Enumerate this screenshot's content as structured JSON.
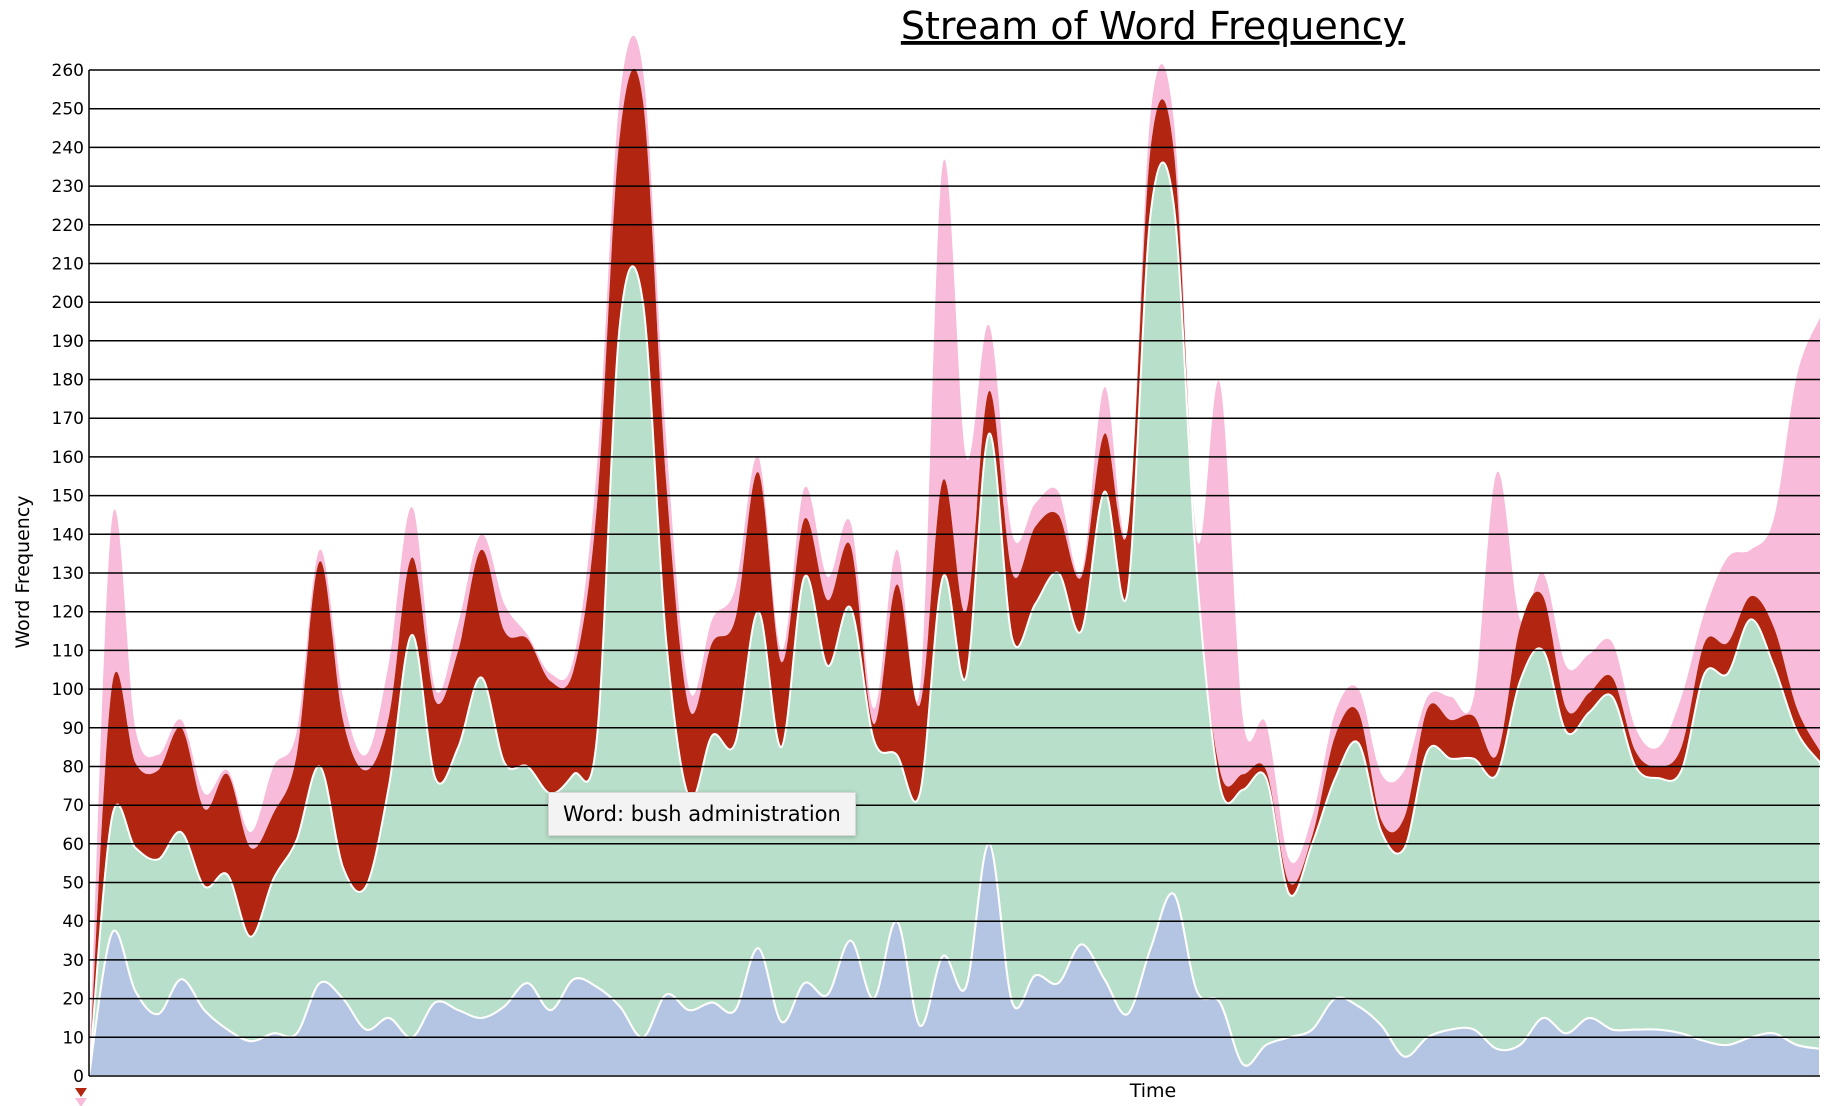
{
  "chart_data": {
    "type": "area",
    "title": "Stream of Word Frequency",
    "xlabel": "Time",
    "ylabel": "Word Frequency",
    "ylim": [
      0,
      260
    ],
    "yticks": [
      0,
      10,
      20,
      30,
      40,
      50,
      60,
      70,
      80,
      90,
      100,
      110,
      120,
      130,
      140,
      150,
      160,
      170,
      180,
      190,
      200,
      210,
      220,
      230,
      240,
      250,
      260
    ],
    "grid": true,
    "stacked": true,
    "x": [
      0,
      1,
      2,
      3,
      4,
      5,
      6,
      7,
      8,
      9,
      10,
      11,
      12,
      13,
      14,
      15,
      16,
      17,
      18,
      19,
      20,
      21,
      22,
      23,
      24,
      25,
      26,
      27,
      28,
      29,
      30,
      31,
      32,
      33,
      34,
      35,
      36,
      37,
      38,
      39,
      40,
      41,
      42,
      43,
      44,
      45,
      46,
      47,
      48,
      49,
      50,
      51,
      52,
      53,
      54,
      55,
      56,
      57,
      58,
      59,
      60,
      61,
      62,
      63,
      64,
      65,
      66,
      67,
      68,
      69,
      70,
      71,
      72,
      73,
      74,
      75
    ],
    "series_colors": [
      "#b3c5e3",
      "#b8dfca",
      "#b22510",
      "#f8bbd9"
    ],
    "series": [
      {
        "values": [
          0,
          37,
          22,
          16,
          25,
          17,
          12,
          9,
          11,
          11,
          24,
          20,
          12,
          15,
          10,
          19,
          17,
          15,
          18,
          24,
          17,
          25,
          23,
          18,
          10,
          21,
          17,
          19,
          17,
          33,
          14,
          24,
          21,
          35,
          20,
          40,
          13,
          31,
          23,
          60,
          19,
          26,
          24,
          34,
          25,
          16,
          33,
          47,
          22,
          19,
          3,
          8,
          10,
          12,
          20,
          18,
          13,
          5,
          10,
          12,
          12,
          7,
          8,
          15,
          11,
          15,
          12,
          12,
          12,
          11,
          9,
          8,
          10,
          11,
          8,
          7
        ]
      },
      {
        "values": [
          0,
          30,
          37,
          40,
          38,
          32,
          40,
          27,
          40,
          50,
          56,
          34,
          37,
          60,
          104,
          58,
          68,
          88,
          63,
          56,
          56,
          53,
          64,
          176,
          190,
          92,
          55,
          69,
          69,
          87,
          71,
          105,
          85,
          86,
          67,
          43,
          60,
          98,
          80,
          106,
          94,
          96,
          106,
          81,
          126,
          109,
          190,
          178,
          108,
          56,
          71,
          69,
          37,
          48,
          57,
          68,
          50,
          54,
          74,
          70,
          70,
          71,
          94,
          95,
          78,
          79,
          86,
          68,
          65,
          68,
          95,
          96,
          108,
          95,
          81,
          74
        ]
      },
      {
        "values": [
          0,
          34,
          22,
          23,
          27,
          20,
          26,
          23,
          17,
          22,
          53,
          38,
          30,
          18,
          20,
          20,
          25,
          33,
          34,
          33,
          29,
          27,
          60,
          49,
          52,
          41,
          23,
          24,
          32,
          36,
          22,
          15,
          17,
          16,
          4,
          44,
          23,
          25,
          17,
          11,
          17,
          20,
          15,
          14,
          15,
          16,
          17,
          14,
          1,
          4,
          4,
          2,
          3,
          2,
          11,
          8,
          3,
          8,
          11,
          10,
          11,
          5,
          14,
          14,
          6,
          5,
          5,
          4,
          3,
          6,
          8,
          8,
          6,
          10,
          6,
          3
        ]
      },
      {
        "values": [
          0,
          43,
          9,
          4,
          2,
          4,
          1,
          4,
          12,
          6,
          3,
          6,
          4,
          14,
          13,
          3,
          7,
          4,
          7,
          1,
          2,
          3,
          10,
          10,
          8,
          11,
          5,
          6,
          8,
          4,
          3,
          8,
          6,
          6,
          4,
          9,
          4,
          82,
          40,
          17,
          10,
          6,
          6,
          1,
          12,
          0,
          9,
          8,
          8,
          100,
          14,
          12,
          6,
          5,
          6,
          6,
          12,
          12,
          3,
          6,
          5,
          73,
          2,
          6,
          11,
          10,
          9,
          6,
          5,
          13,
          8,
          22,
          12,
          28,
          86,
          112
        ]
      }
    ]
  },
  "tooltip": {
    "text": "Word: bush administration"
  }
}
